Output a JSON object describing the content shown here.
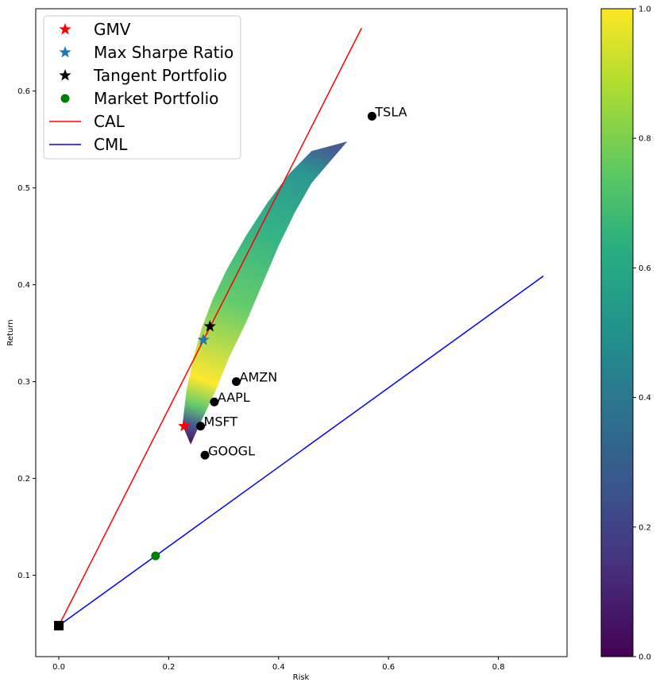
{
  "chart_data": {
    "type": "scatter",
    "xlabel": "Risk",
    "ylabel": "Return",
    "xlim": [
      -0.042,
      0.925
    ],
    "ylim": [
      0.016,
      0.685
    ],
    "x_ticks": [
      0.0,
      0.2,
      0.4,
      0.6,
      0.8
    ],
    "x_tick_labels": [
      "0.0",
      "0.2",
      "0.4",
      "0.6",
      "0.8"
    ],
    "y_ticks": [
      0.1,
      0.2,
      0.3,
      0.4,
      0.5,
      0.6
    ],
    "y_tick_labels": [
      "0.1",
      "0.2",
      "0.3",
      "0.4",
      "0.5",
      "0.6"
    ],
    "legend": {
      "placement": "top-left",
      "entries": [
        {
          "label": "GMV",
          "marker": "star",
          "color": "#ff0000"
        },
        {
          "label": "Max Sharpe Ratio",
          "marker": "star",
          "color": "#1f77b4"
        },
        {
          "label": "Tangent Portfolio",
          "marker": "star",
          "color": "#000000"
        },
        {
          "label": "Market Portfolio",
          "marker": "circle",
          "color": "#008000"
        },
        {
          "label": "CAL",
          "marker": "line",
          "color": "#ff0000"
        },
        {
          "label": "CML",
          "marker": "line",
          "color": "#0000ff"
        }
      ]
    },
    "colorbar": {
      "colormap": "viridis",
      "range": [
        0.0,
        1.0
      ],
      "ticks": [
        0.0,
        0.2,
        0.4,
        0.6,
        0.8,
        1.0
      ],
      "tick_labels": [
        "0.0",
        "0.2",
        "0.4",
        "0.6",
        "0.8",
        "1.0"
      ]
    },
    "frontier_cloud": {
      "description_series": "Simulated portfolios (Sharpe-colored)",
      "upper_edge": [
        [
          0.225,
          0.255
        ],
        [
          0.232,
          0.29
        ],
        [
          0.245,
          0.325
        ],
        [
          0.26,
          0.355
        ],
        [
          0.28,
          0.385
        ],
        [
          0.305,
          0.415
        ],
        [
          0.34,
          0.45
        ],
        [
          0.38,
          0.485
        ],
        [
          0.42,
          0.515
        ],
        [
          0.46,
          0.538
        ],
        [
          0.525,
          0.548
        ]
      ],
      "lower_edge": [
        [
          0.24,
          0.235
        ],
        [
          0.26,
          0.26
        ],
        [
          0.285,
          0.29
        ],
        [
          0.31,
          0.325
        ],
        [
          0.34,
          0.36
        ],
        [
          0.37,
          0.4
        ],
        [
          0.4,
          0.44
        ],
        [
          0.43,
          0.475
        ],
        [
          0.46,
          0.505
        ],
        [
          0.49,
          0.525
        ],
        [
          0.525,
          0.548
        ]
      ]
    },
    "special_points": [
      {
        "name": "GMV",
        "x": 0.228,
        "y": 0.254,
        "marker": "star",
        "color": "#ff0000"
      },
      {
        "name": "Max Sharpe Ratio",
        "x": 0.263,
        "y": 0.343,
        "marker": "star",
        "color": "#1f77b4"
      },
      {
        "name": "Tangent Portfolio",
        "x": 0.275,
        "y": 0.357,
        "marker": "star",
        "color": "#000000"
      },
      {
        "name": "Market Portfolio",
        "x": 0.176,
        "y": 0.12,
        "marker": "circle",
        "color": "#008000"
      },
      {
        "name": "Risk-free",
        "x": 0.0,
        "y": 0.048,
        "marker": "square",
        "color": "#000000"
      }
    ],
    "assets": [
      {
        "label": "TSLA",
        "x": 0.57,
        "y": 0.574
      },
      {
        "label": "AMZN",
        "x": 0.323,
        "y": 0.3
      },
      {
        "label": "AAPL",
        "x": 0.283,
        "y": 0.279
      },
      {
        "label": "MSFT",
        "x": 0.258,
        "y": 0.254
      },
      {
        "label": "GOOGL",
        "x": 0.266,
        "y": 0.224
      }
    ],
    "lines": [
      {
        "name": "CAL",
        "color": "#ff0000",
        "x": [
          0.0,
          0.551
        ],
        "y": [
          0.048,
          0.665
        ]
      },
      {
        "name": "CML",
        "color": "#0000ff",
        "x": [
          0.0,
          0.882
        ],
        "y": [
          0.048,
          0.409
        ]
      }
    ]
  }
}
